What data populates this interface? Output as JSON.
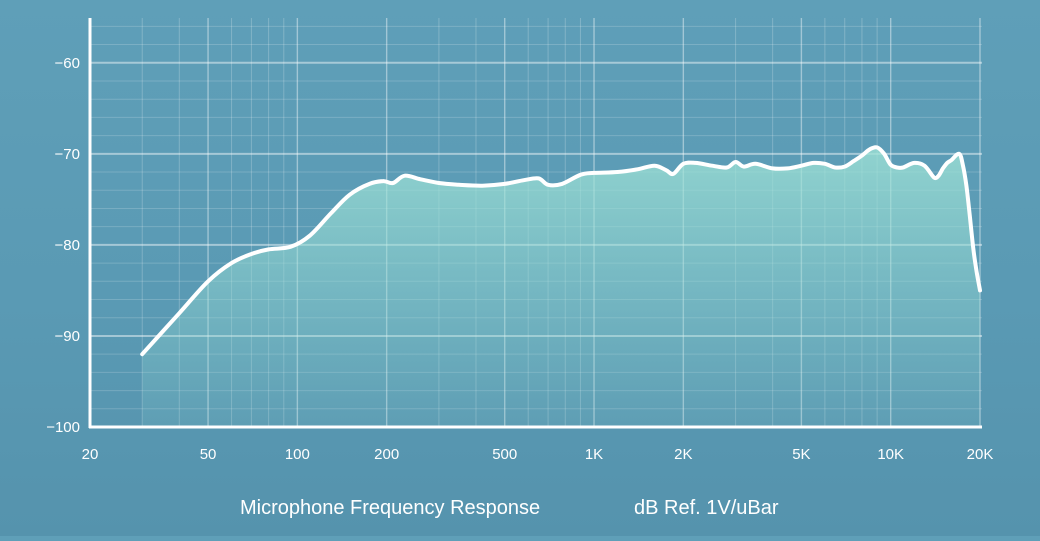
{
  "chart_data": {
    "type": "line",
    "title": "",
    "caption": "Microphone Frequency Response",
    "units_label": "dB Ref. 1V/uBar",
    "xlabel": "",
    "ylabel": "",
    "x_scale": "log",
    "xlim": [
      20,
      20000
    ],
    "ylim": [
      -100,
      -54
    ],
    "x_ticks": [
      {
        "value": 20,
        "label": "20"
      },
      {
        "value": 50,
        "label": "50"
      },
      {
        "value": 100,
        "label": "100"
      },
      {
        "value": 200,
        "label": "200"
      },
      {
        "value": 500,
        "label": "500"
      },
      {
        "value": 1000,
        "label": "1K"
      },
      {
        "value": 2000,
        "label": "2K"
      },
      {
        "value": 5000,
        "label": "5K"
      },
      {
        "value": 10000,
        "label": "10K"
      },
      {
        "value": 20000,
        "label": "20K"
      }
    ],
    "y_ticks": [
      {
        "value": -60,
        "label": "−60"
      },
      {
        "value": -70,
        "label": "−70"
      },
      {
        "value": -80,
        "label": "−80"
      },
      {
        "value": -90,
        "label": "−90"
      },
      {
        "value": -100,
        "label": "−100"
      }
    ],
    "grid": true,
    "series": [
      {
        "x": [
          30,
          40,
          50,
          60,
          70,
          80,
          95,
          110,
          130,
          150,
          175,
          195,
          210,
          230,
          260,
          300,
          350,
          420,
          500,
          580,
          650,
          700,
          780,
          900,
          1000,
          1200,
          1400,
          1600,
          1750,
          1850,
          2000,
          2200,
          2500,
          2800,
          3000,
          3200,
          3500,
          4000,
          4500,
          5000,
          5500,
          6000,
          6500,
          7000,
          7500,
          8000,
          8500,
          9000,
          9500,
          10000,
          10500,
          11000,
          12000,
          13000,
          14000,
          14500,
          15000,
          15500,
          16000,
          17000,
          17500,
          18000,
          18500,
          19000,
          19500,
          20000
        ],
        "y": [
          -92,
          -87.5,
          -84,
          -82,
          -81,
          -80.5,
          -80.2,
          -79,
          -76.5,
          -74.5,
          -73.3,
          -73,
          -73.2,
          -72.4,
          -72.8,
          -73.2,
          -73.4,
          -73.5,
          -73.3,
          -72.9,
          -72.7,
          -73.4,
          -73.3,
          -72.3,
          -72.1,
          -72,
          -71.7,
          -71.3,
          -71.8,
          -72.2,
          -71.1,
          -71,
          -71.3,
          -71.5,
          -70.9,
          -71.4,
          -71.1,
          -71.6,
          -71.6,
          -71.3,
          -71,
          -71.1,
          -71.5,
          -71.4,
          -70.8,
          -70.2,
          -69.5,
          -69.3,
          -70,
          -71.2,
          -71.5,
          -71.5,
          -71,
          -71.3,
          -72.6,
          -72.4,
          -71.6,
          -71,
          -70.7,
          -70,
          -71.2,
          -73.5,
          -77,
          -80.5,
          -83,
          -85
        ]
      }
    ]
  }
}
